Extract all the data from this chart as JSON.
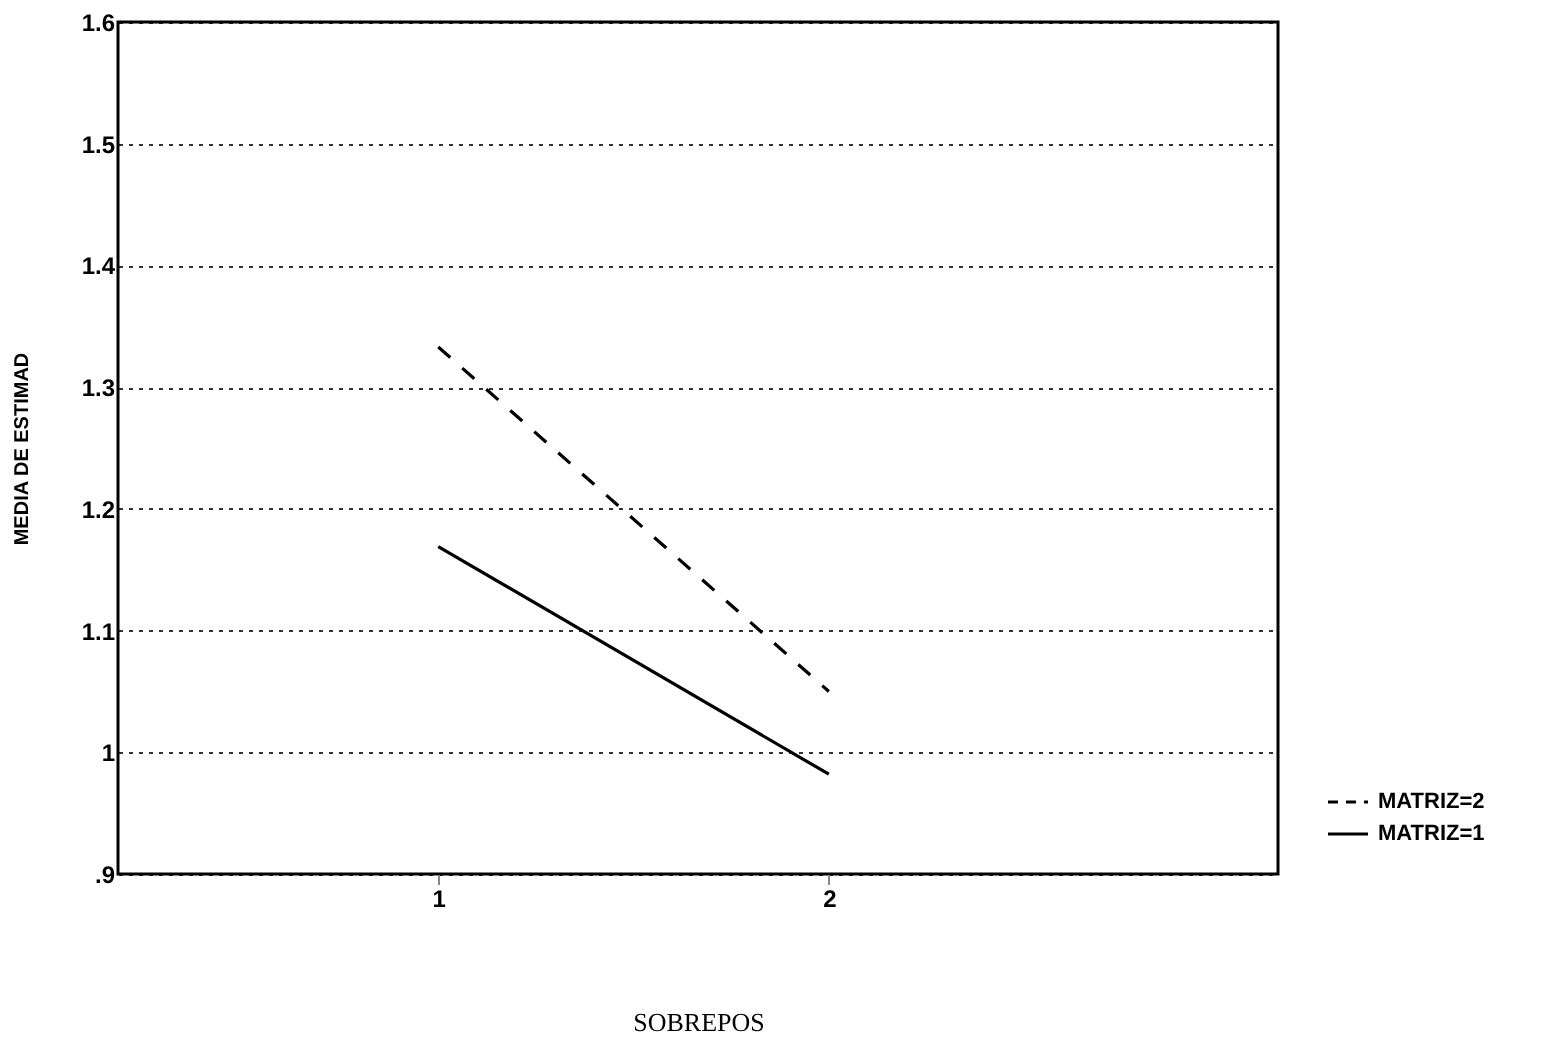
{
  "chart_data": {
    "type": "line",
    "xlabel": "SOBREPOS",
    "ylabel": "MEDIA DE ESTIMAD",
    "x": [
      1,
      2
    ],
    "series": [
      {
        "name": "MATRIZ=2",
        "color": "#000000",
        "line_style": "dashed",
        "values": [
          1.333,
          1.05
        ]
      },
      {
        "name": "MATRIZ=1",
        "color": "#000000",
        "line_style": "solid",
        "values": [
          1.169,
          0.982
        ]
      }
    ],
    "xlim": [
      0.18,
      3.15
    ],
    "xticks": [
      1,
      2
    ],
    "ylim": [
      0.9,
      1.6
    ],
    "yticks": [
      {
        "value": 0.9,
        "label": ".9"
      },
      1,
      1.1,
      1.2,
      1.3,
      1.4,
      1.5,
      1.6
    ],
    "grid": "y",
    "legend": "bottom right",
    "marker": "none"
  }
}
